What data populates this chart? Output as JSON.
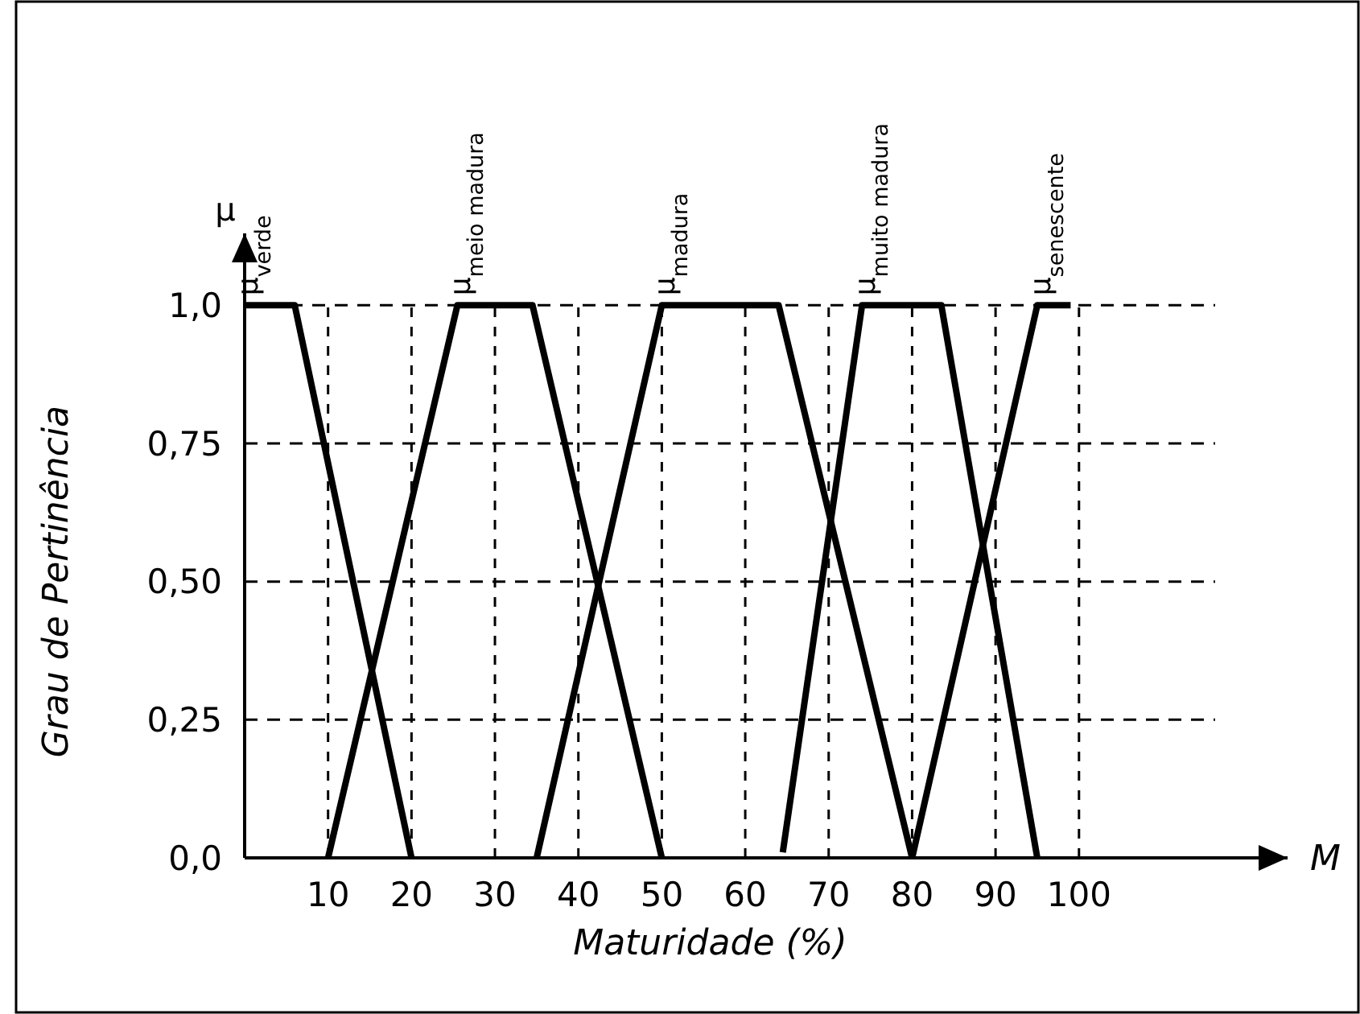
{
  "chart_data": {
    "type": "line",
    "xlabel": "Maturidade (%)",
    "ylabel": "Grau de Pertinência",
    "annotations": [
      "μ",
      "M"
    ],
    "xlim": [
      0,
      125
    ],
    "ylim": [
      0,
      1.13
    ],
    "xticks": [
      10,
      20,
      30,
      40,
      50,
      60,
      70,
      80,
      90,
      100
    ],
    "yticks": [
      {
        "value": 0,
        "label": "0,0"
      },
      {
        "value": 0.25,
        "label": "0,25"
      },
      {
        "value": 0.5,
        "label": "0,50"
      },
      {
        "value": 0.75,
        "label": "0,75"
      },
      {
        "value": 1,
        "label": "1,0"
      }
    ],
    "grid": true,
    "marker": "none",
    "line_style": "solid",
    "series": [
      {
        "name": "μ$_{verde}$",
        "color": "#000000",
        "x": [
          0,
          6,
          20
        ],
        "values": [
          1,
          1,
          0
        ]
      },
      {
        "name": "μ$_{meio madura}$",
        "color": "#000000",
        "x": [
          10,
          25.5,
          34.5,
          50
        ],
        "values": [
          0,
          1,
          1,
          0
        ]
      },
      {
        "name": "μ$_{madura}$",
        "color": "#000000",
        "x": [
          35,
          50,
          64,
          80
        ],
        "values": [
          0,
          1,
          1,
          0
        ]
      },
      {
        "name": "μ$_{muito madura}$",
        "color": "#000000",
        "x": [
          64.5,
          74,
          83.5,
          95
        ],
        "values": [
          0.01,
          1,
          1,
          0
        ]
      },
      {
        "name": "μ$_{senescente}$",
        "color": "#000000",
        "x": [
          80,
          95,
          99
        ],
        "values": [
          0,
          1,
          1
        ]
      }
    ]
  }
}
